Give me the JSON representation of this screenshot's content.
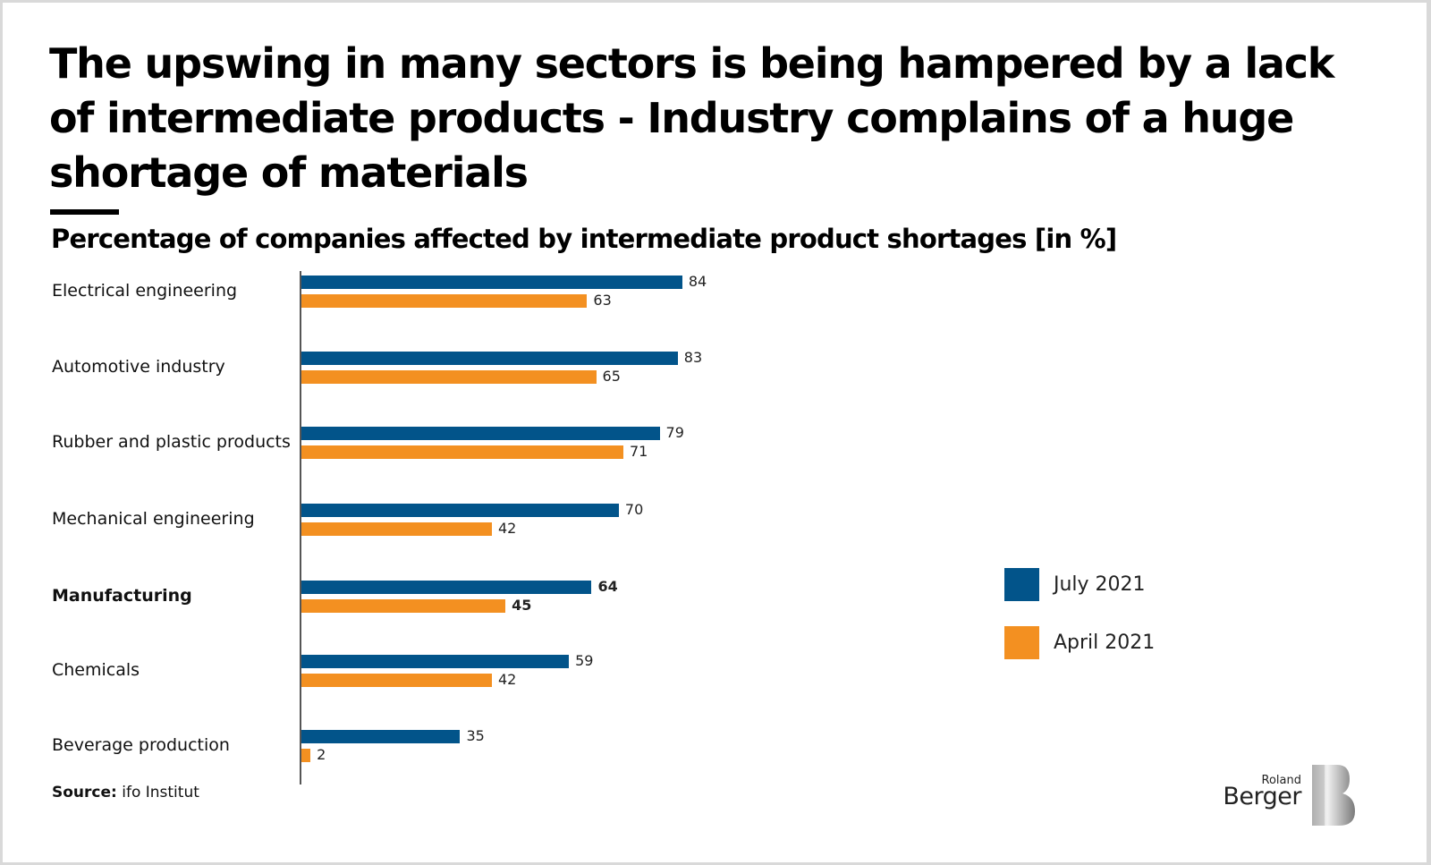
{
  "header": {
    "title": "The upswing in many sectors is being hampered by a lack of intermediate products - Industry complains of a huge shortage of materials",
    "subtitle": "Percentage of companies affected by intermediate product shortages [in %]"
  },
  "footer": {
    "source_label": "Source:",
    "source_value": "ifo Institut"
  },
  "logo": {
    "small": "Roland",
    "big": "Berger",
    "mark": "B"
  },
  "colors": {
    "july": "#02548a",
    "april": "#f39021"
  },
  "chart_data": {
    "type": "bar",
    "orientation": "horizontal",
    "title": "Percentage of companies affected by intermediate product shortages [in %]",
    "xlabel": "",
    "ylabel": "",
    "xlim": [
      0,
      100
    ],
    "grid": false,
    "legend_position": "right",
    "categories": [
      "Electrical engineering",
      "Automotive industry",
      "Rubber and plastic products",
      "Mechanical engineering",
      "Manufacturing",
      "Chemicals",
      "Beverage production"
    ],
    "highlighted_category": "Manufacturing",
    "series": [
      {
        "name": "July 2021",
        "color": "#02548a",
        "values": [
          84,
          83,
          79,
          70,
          64,
          59,
          35
        ]
      },
      {
        "name": "April 2021",
        "color": "#f39021",
        "values": [
          63,
          65,
          71,
          42,
          45,
          42,
          2
        ]
      }
    ]
  }
}
